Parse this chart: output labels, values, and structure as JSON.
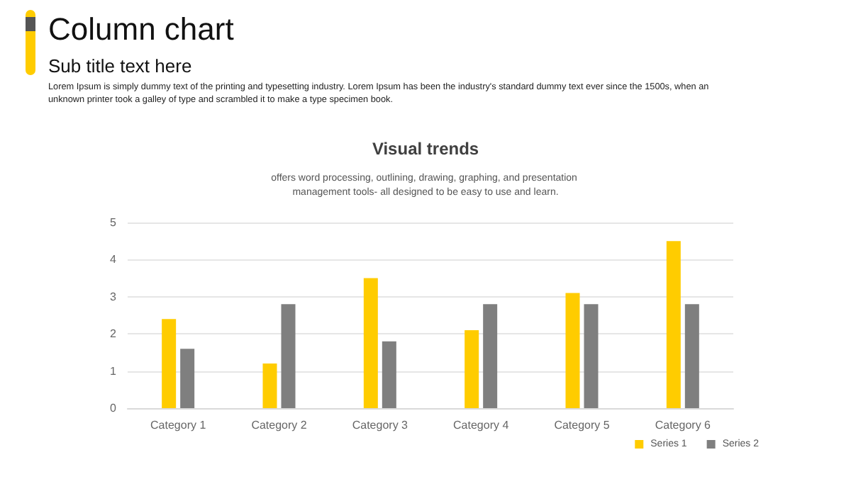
{
  "chart_data": {
    "type": "bar",
    "title": "Visual trends",
    "subtitle": "offers word processing, outlining, drawing, graphing, and presentation management tools- all designed to be easy to use and learn.",
    "annotations": [
      "Column chart",
      "Sub title text here",
      "Lorem Ipsum is simply dummy text of the printing and typesetting industry. Lorem Ipsum has been the industry's standard dummy text ever since the 1500s, when an unknown printer took a galley of type and scrambled it to make a type specimen book."
    ],
    "categories": [
      "Category 1",
      "Category 2",
      "Category 3",
      "Category 4",
      "Category 5",
      "Category 6"
    ],
    "series": [
      {
        "name": "Series 1",
        "color": "#ffcc00",
        "values": [
          2.4,
          1.2,
          3.5,
          2.1,
          3.1,
          4.5
        ]
      },
      {
        "name": "Series 2",
        "color": "#7f7f7f",
        "values": [
          1.6,
          2.8,
          1.8,
          2.8,
          2.8,
          2.8
        ]
      }
    ],
    "ylim": [
      0,
      5
    ],
    "yticks": [
      0,
      1,
      2,
      3,
      4,
      5
    ],
    "grid": "y",
    "legend": "bottom right"
  }
}
